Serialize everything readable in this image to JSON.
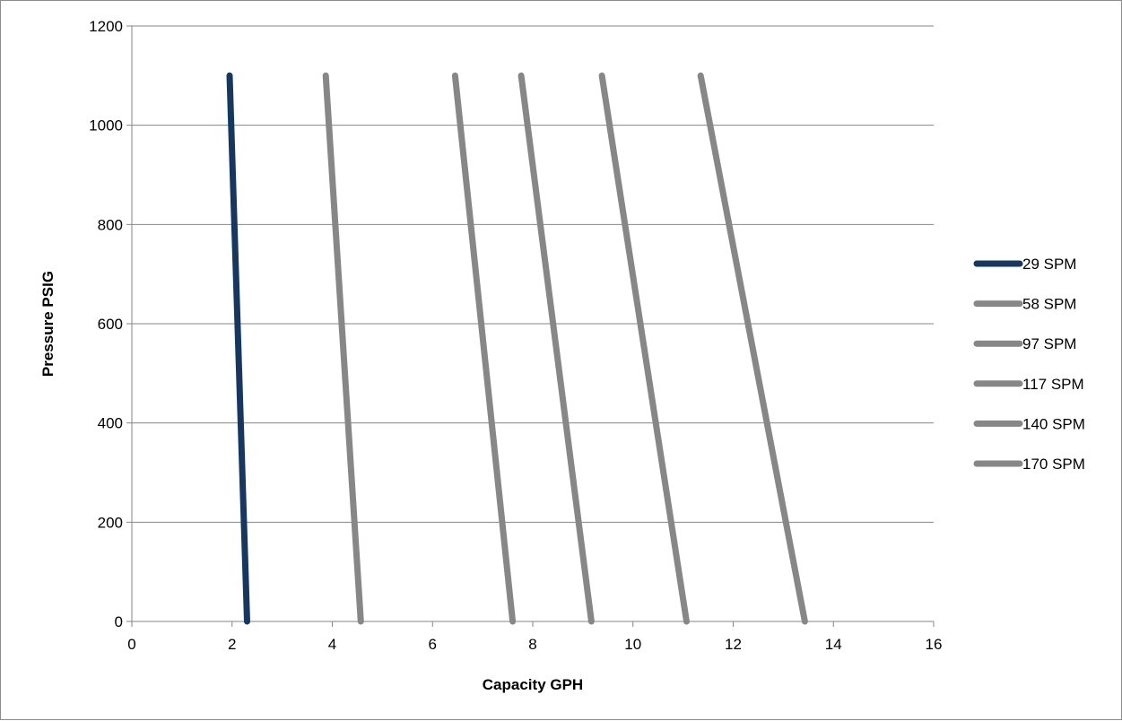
{
  "chart_data": {
    "type": "line",
    "title": "",
    "xlabel": "Capacity GPH",
    "ylabel": "Pressure PSIG",
    "xlim": [
      0,
      16
    ],
    "ylim": [
      0,
      1200
    ],
    "xticks": [
      0,
      2,
      4,
      6,
      8,
      10,
      12,
      14,
      16
    ],
    "yticks": [
      0,
      200,
      400,
      600,
      800,
      1000,
      1200
    ],
    "grid": "horizontal",
    "legend_position": "right",
    "series": [
      {
        "name": "29 SPM",
        "color": "#17375e",
        "points": [
          [
            1.95,
            1100
          ],
          [
            2.3,
            0
          ]
        ]
      },
      {
        "name": "58 SPM",
        "color": "#878787",
        "points": [
          [
            3.87,
            1100
          ],
          [
            4.57,
            0
          ]
        ]
      },
      {
        "name": "97 SPM",
        "color": "#878787",
        "points": [
          [
            6.45,
            1100
          ],
          [
            7.6,
            0
          ]
        ]
      },
      {
        "name": "117 SPM",
        "color": "#878787",
        "points": [
          [
            7.77,
            1100
          ],
          [
            9.17,
            0
          ]
        ]
      },
      {
        "name": "140 SPM",
        "color": "#878787",
        "points": [
          [
            9.38,
            1100
          ],
          [
            11.07,
            0
          ]
        ]
      },
      {
        "name": "170 SPM",
        "color": "#878787",
        "points": [
          [
            11.35,
            1100
          ],
          [
            13.43,
            0
          ]
        ]
      }
    ]
  }
}
